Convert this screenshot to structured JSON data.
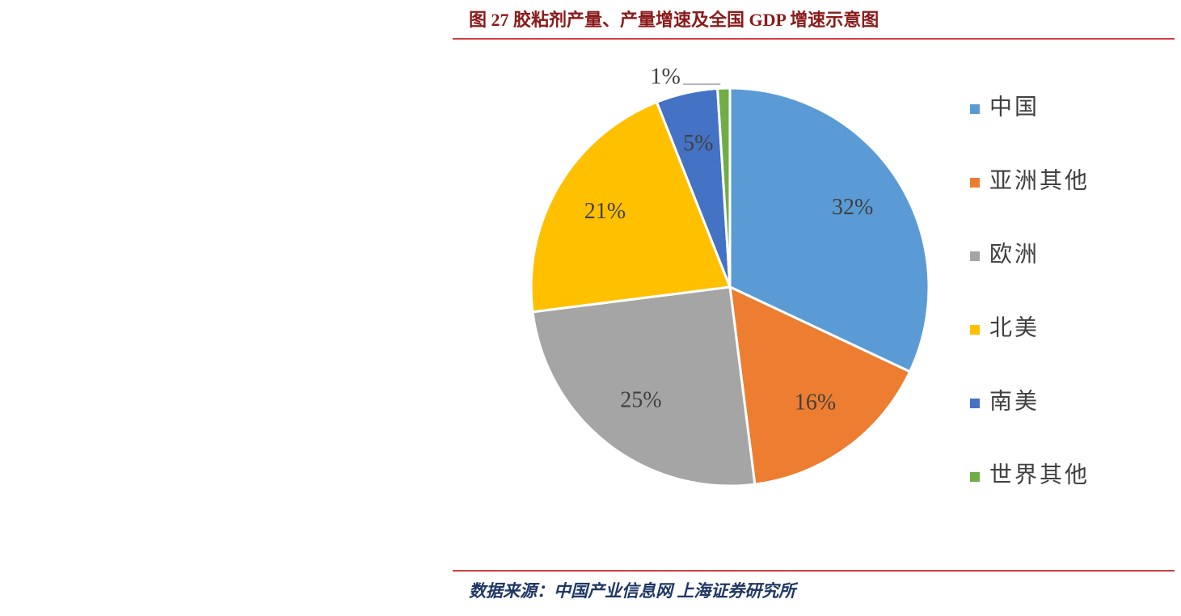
{
  "chart_data": {
    "type": "pie",
    "title": "图 27 胶粘剂产量、产量增速及全国 GDP 增速示意图",
    "source": "数据来源：中国产业信息网 上海证券研究所",
    "legend": "right",
    "series": [
      {
        "name": "中国",
        "color": "#5b9bd5",
        "values": [
          32
        ],
        "value_labels": [
          "32%"
        ]
      },
      {
        "name": "亚洲其他",
        "color": "#ed7d31",
        "values": [
          16
        ],
        "value_labels": [
          "16%"
        ]
      },
      {
        "name": "欧洲",
        "color": "#a5a5a5",
        "values": [
          25
        ],
        "value_labels": [
          "25%"
        ]
      },
      {
        "name": "北美",
        "color": "#ffc000",
        "values": [
          21
        ],
        "value_labels": [
          "21%"
        ]
      },
      {
        "name": "南美",
        "color": "#4472c4",
        "values": [
          5
        ],
        "value_labels": [
          "5%"
        ]
      },
      {
        "name": "世界其他",
        "color": "#70ad47",
        "values": [
          1
        ],
        "value_labels": [
          "1%"
        ]
      }
    ]
  }
}
